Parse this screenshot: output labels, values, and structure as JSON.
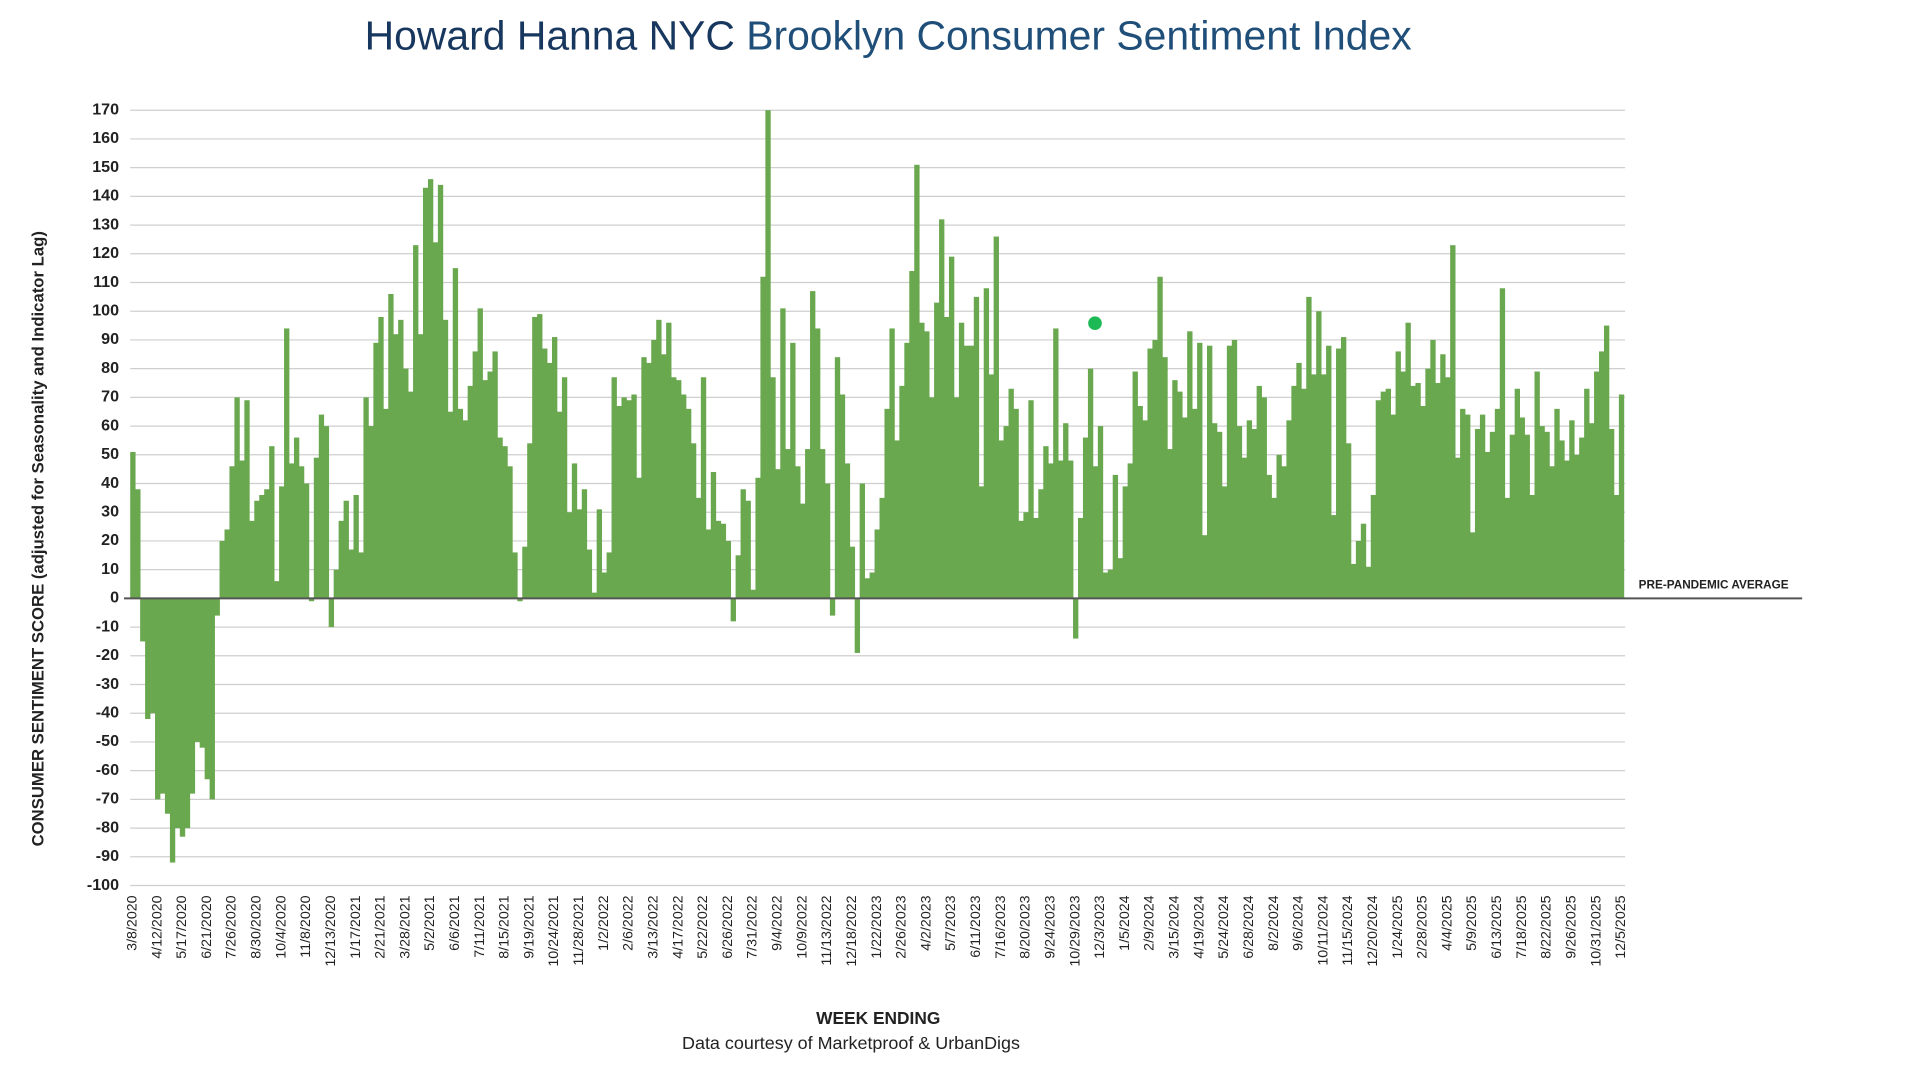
{
  "chart_data": {
    "type": "bar",
    "title_brand": "Howard Hanna NYC",
    "title": "Brooklyn Consumer Sentiment Index",
    "ylabel": "CONSUMER SENTIMENT SCORE (adjusted for Seasonality and Indicator Lag)",
    "xlabel": "WEEK ENDING",
    "source": "Data courtesy of Marketproof & UrbanDigs",
    "annotation": "PRE-PANDEMIC AVERAGE",
    "color": "#6aa84f",
    "ylim": [
      -100,
      170
    ],
    "yticks": [
      -100,
      -90,
      -80,
      -70,
      -60,
      -50,
      -40,
      -30,
      -20,
      -10,
      0,
      10,
      20,
      30,
      40,
      50,
      60,
      70,
      80,
      90,
      100,
      110,
      120,
      130,
      140,
      150,
      160,
      170
    ],
    "grid": true,
    "categories": [
      "3/8/2020",
      null,
      null,
      null,
      null,
      "4/12/2020",
      null,
      null,
      null,
      null,
      "5/17/2020",
      null,
      null,
      null,
      null,
      "6/21/2020",
      null,
      null,
      null,
      null,
      "7/26/2020",
      null,
      null,
      null,
      null,
      "8/30/2020",
      null,
      null,
      null,
      null,
      "10/4/2020",
      null,
      null,
      null,
      null,
      "11/8/2020",
      null,
      null,
      null,
      null,
      "12/13/2020",
      null,
      null,
      null,
      null,
      "1/17/2021",
      null,
      null,
      null,
      null,
      "2/21/2021",
      null,
      null,
      null,
      null,
      "3/28/2021",
      null,
      null,
      null,
      null,
      "5/2/2021",
      null,
      null,
      null,
      null,
      "6/6/2021",
      null,
      null,
      null,
      null,
      "7/11/2021",
      null,
      null,
      null,
      null,
      "8/15/2021",
      null,
      null,
      null,
      null,
      "9/19/2021",
      null,
      null,
      null,
      null,
      "10/24/2021",
      null,
      null,
      null,
      null,
      "11/28/2021",
      null,
      null,
      null,
      null,
      "1/2/2022",
      null,
      null,
      null,
      null,
      "2/6/2022",
      null,
      null,
      null,
      null,
      "3/13/2022",
      null,
      null,
      null,
      null,
      "4/17/2022",
      null,
      null,
      null,
      null,
      "5/22/2022",
      null,
      null,
      null,
      null,
      "6/26/2022",
      null,
      null,
      null,
      null,
      "7/31/2022",
      null,
      null,
      null,
      null,
      "9/4/2022",
      null,
      null,
      null,
      null,
      "10/9/2022",
      null,
      null,
      null,
      null,
      "11/13/2022",
      null,
      null,
      null,
      null,
      "12/18/2022",
      null,
      null,
      null,
      null,
      "1/22/2023",
      null,
      null,
      null,
      null,
      "2/26/2023",
      null,
      null,
      null,
      null,
      "4/2/2023",
      null,
      null,
      null,
      null,
      "5/7/2023",
      null,
      null,
      null,
      null,
      "6/11/2023",
      null,
      null,
      null,
      null,
      "7/16/2023",
      null,
      null,
      null,
      null,
      "8/20/2023",
      null,
      null,
      null,
      null,
      "9/24/2023",
      null,
      null,
      null,
      null,
      "10/29/2023",
      null,
      null,
      null,
      null,
      "12/3/2023",
      null,
      null,
      null,
      null,
      "1/5/2024",
      null,
      null,
      null,
      null,
      "2/9/2024",
      null,
      null,
      null,
      null,
      "3/15/2024",
      null,
      null,
      null,
      null,
      "4/19/2024",
      null,
      null,
      null,
      null,
      "5/24/2024",
      null,
      null,
      null,
      null,
      "6/28/2024",
      null,
      null,
      null,
      null,
      "8/2/2024",
      null,
      null,
      null,
      null,
      "9/6/2024",
      null,
      null,
      null,
      null,
      "10/11/2024",
      null,
      null,
      null,
      null,
      "11/15/2024",
      null,
      null,
      null,
      null,
      "12/20/2024",
      null,
      null,
      null,
      null,
      "1/24/2025",
      null,
      null,
      null,
      null,
      "2/28/2025",
      null,
      null,
      null,
      null,
      "4/4/2025",
      null,
      null,
      null,
      null,
      "5/9/2025",
      null,
      null,
      null,
      null,
      "6/13/2025",
      null,
      null,
      null,
      null,
      "7/18/2025",
      null,
      null,
      null,
      null,
      "8/22/2025",
      null,
      null,
      null,
      null,
      "9/26/2025",
      null,
      null,
      null,
      null,
      "10/31/2025",
      null,
      null,
      null,
      null,
      "12/5/2025"
    ],
    "values": [
      51,
      38,
      -15,
      -42,
      -40,
      -70,
      -68,
      -75,
      -92,
      -80,
      -83,
      -80,
      -68,
      -50,
      -52,
      -63,
      -70,
      -6,
      20,
      24,
      46,
      70,
      48,
      69,
      27,
      34,
      36,
      38,
      53,
      6,
      39,
      94,
      47,
      56,
      46,
      40,
      -1,
      49,
      64,
      60,
      -10,
      10,
      27,
      34,
      17,
      36,
      16,
      70,
      60,
      89,
      98,
      66,
      106,
      92,
      97,
      80,
      72,
      123,
      92,
      143,
      146,
      124,
      144,
      97,
      65,
      115,
      66,
      62,
      74,
      86,
      101,
      76,
      79,
      86,
      56,
      53,
      46,
      16,
      -1,
      18,
      54,
      98,
      99,
      87,
      82,
      91,
      65,
      77,
      30,
      47,
      31,
      38,
      17,
      2,
      31,
      9,
      16,
      77,
      67,
      70,
      69,
      71,
      42,
      84,
      82,
      90,
      97,
      85,
      96,
      77,
      76,
      71,
      66,
      54,
      35,
      77,
      24,
      44,
      27,
      26,
      20,
      -8,
      15,
      38,
      34,
      3,
      42,
      112,
      170,
      77,
      45,
      101,
      52,
      89,
      46,
      33,
      52,
      107,
      94,
      52,
      40,
      -6,
      84,
      71,
      47,
      18,
      -19,
      40,
      7,
      9,
      24,
      35,
      66,
      94,
      55,
      74,
      89,
      114,
      151,
      96,
      93,
      70,
      103,
      132,
      98,
      119,
      70,
      96,
      88,
      88,
      105,
      39,
      108,
      78,
      126,
      55,
      60,
      73,
      66,
      27,
      30,
      69,
      28,
      38,
      53,
      47,
      94,
      48,
      61,
      48,
      -14,
      28,
      56,
      80,
      46,
      60,
      9,
      10,
      43,
      14,
      39,
      47,
      79,
      67,
      62,
      87,
      90,
      112,
      84,
      52,
      76,
      72,
      63,
      93,
      66,
      89,
      22,
      88,
      61,
      58,
      39,
      88,
      90,
      60,
      49,
      62,
      59,
      74,
      70,
      43,
      35,
      50,
      46,
      62,
      74,
      82,
      73,
      105,
      78,
      100,
      78,
      88,
      29,
      87,
      91,
      54,
      12,
      20,
      26,
      11,
      36,
      69,
      72,
      73,
      64,
      86,
      79,
      96,
      74,
      75,
      67,
      80,
      90,
      75,
      85,
      77,
      123,
      49,
      66,
      64,
      23,
      59,
      64,
      51,
      58,
      66,
      108,
      35,
      57,
      73,
      63,
      57,
      36,
      79,
      60,
      58,
      46,
      66,
      55,
      48,
      62,
      50,
      56,
      73,
      61,
      79,
      86,
      95,
      59,
      36,
      71
    ]
  }
}
